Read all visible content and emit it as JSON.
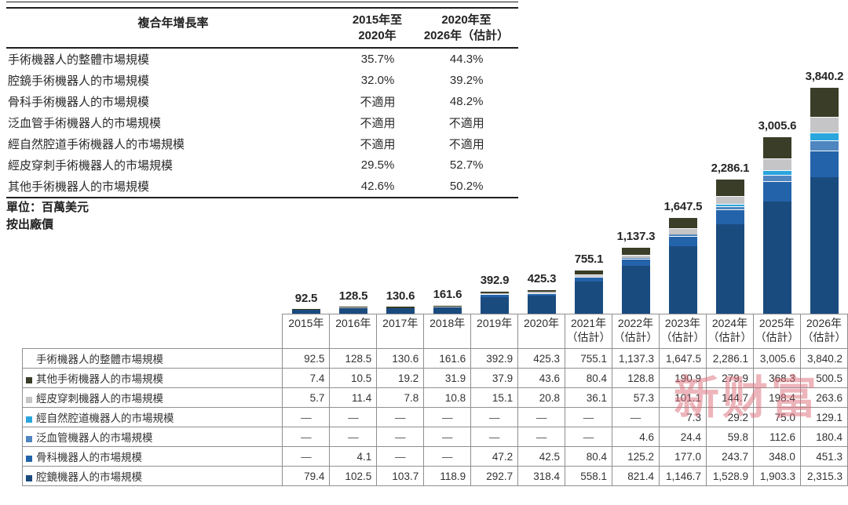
{
  "cagr_table": {
    "title": "複合年增長率",
    "col1_header_lines": [
      "2015年至",
      "2020年"
    ],
    "col2_header_lines": [
      "2020年至",
      "2026年（估計）"
    ],
    "rows": [
      {
        "label": "手術機器人的整體市場規模",
        "v1": "35.7%",
        "v2": "44.3%"
      },
      {
        "label": "腔鏡手術機器人的市場規模",
        "v1": "32.0%",
        "v2": "39.2%"
      },
      {
        "label": "骨科手術機器人的市場規模",
        "v1": "不適用",
        "v2": "48.2%"
      },
      {
        "label": "泛血管手術機器人的市場規模",
        "v1": "不適用",
        "v2": "不適用"
      },
      {
        "label": "經自然腔道手術機器人的市場規模",
        "v1": "不適用",
        "v2": "不適用"
      },
      {
        "label": "經皮穿刺手術機器人的市場規模",
        "v1": "29.5%",
        "v2": "52.7%"
      },
      {
        "label": "其他手術機器人的市場規模",
        "v1": "42.6%",
        "v2": "50.2%"
      }
    ]
  },
  "unit_note": {
    "line1": "單位：百萬美元",
    "line2": "按出廠價"
  },
  "chart_data": {
    "type": "bar",
    "stacked": true,
    "unit": "百萬美元",
    "categories": [
      "2015年",
      "2016年",
      "2017年",
      "2018年",
      "2019年",
      "2020年",
      "2021年",
      "2022年",
      "2023年",
      "2024年",
      "2025年",
      "2026年"
    ],
    "estimate_from_index": 6,
    "estimate_suffix": "（估計）",
    "totals": [
      92.5,
      128.5,
      130.6,
      161.6,
      392.9,
      425.3,
      755.1,
      1137.3,
      1647.5,
      2286.1,
      3005.6,
      3840.2
    ],
    "totals_display": [
      "92.5",
      "128.5",
      "130.6",
      "161.6",
      "392.9",
      "425.3",
      "755.1",
      "1,137.3",
      "1,647.5",
      "2,286.1",
      "3,005.6",
      "3,840.2"
    ],
    "series": [
      {
        "name": "腔鏡機器人的市場規模",
        "color": "#1a4b7f",
        "values": [
          79.4,
          102.5,
          103.7,
          118.9,
          292.7,
          318.4,
          558.1,
          821.4,
          1146.7,
          1528.9,
          1903.3,
          2315.3
        ]
      },
      {
        "name": "骨科機器人的市場規模",
        "color": "#2363a9",
        "values": [
          0,
          4.1,
          0,
          0,
          47.2,
          42.5,
          80.4,
          125.2,
          177.0,
          243.7,
          348.0,
          451.3
        ]
      },
      {
        "name": "泛血管機器人的市場規模",
        "color": "#4f86c0",
        "values": [
          0,
          0,
          0,
          0,
          0,
          0,
          0,
          4.6,
          24.4,
          59.8,
          112.6,
          180.4
        ]
      },
      {
        "name": "經自然腔道機器人的市場規模",
        "color": "#2aa6dd",
        "values": [
          0,
          0,
          0,
          0,
          0,
          0,
          0,
          0,
          7.3,
          29.2,
          75.0,
          129.1
        ]
      },
      {
        "name": "經皮穿刺機器人的市場規模",
        "color": "#c5c4c6",
        "values": [
          5.7,
          11.4,
          7.8,
          10.8,
          15.1,
          20.8,
          36.1,
          57.3,
          101.1,
          144.7,
          198.4,
          263.6
        ]
      },
      {
        "name": "其他手術機器人的市場規模",
        "color": "#3a3d27",
        "values": [
          7.4,
          10.5,
          19.2,
          31.9,
          37.9,
          43.6,
          80.4,
          128.8,
          190.9,
          279.9,
          368.3,
          500.5
        ]
      }
    ],
    "ylim": [
      0,
      3840.2
    ],
    "legend_position": "table-left",
    "grid": false
  },
  "bottom_table": {
    "rows": [
      {
        "marker": null,
        "label": "手術機器人的整體市場規模",
        "cells": [
          "92.5",
          "128.5",
          "130.6",
          "161.6",
          "392.9",
          "425.3",
          "755.1",
          "1,137.3",
          "1,647.5",
          "2,286.1",
          "3,005.6",
          "3,840.2"
        ]
      },
      {
        "marker": "#3a3d27",
        "label": "其他手術機器人的市場規模",
        "cells": [
          "7.4",
          "10.5",
          "19.2",
          "31.9",
          "37.9",
          "43.6",
          "80.4",
          "128.8",
          "190.9",
          "279.9",
          "368.3",
          "500.5"
        ]
      },
      {
        "marker": "#c5c4c6",
        "label": "經皮穿刺機器人的市場規模",
        "cells": [
          "5.7",
          "11.4",
          "7.8",
          "10.8",
          "15.1",
          "20.8",
          "36.1",
          "57.3",
          "101.1",
          "144.7",
          "198.4",
          "263.6"
        ]
      },
      {
        "marker": "#2aa6dd",
        "label": "經自然腔道機器人的市場規模",
        "cells": [
          "—",
          "—",
          "—",
          "—",
          "—",
          "—",
          "—",
          "—",
          "7.3",
          "29.2",
          "75.0",
          "129.1"
        ]
      },
      {
        "marker": "#4f86c0",
        "label": "泛血管機器人的市場規模",
        "cells": [
          "—",
          "—",
          "—",
          "—",
          "—",
          "—",
          "—",
          "4.6",
          "24.4",
          "59.8",
          "112.6",
          "180.4"
        ]
      },
      {
        "marker": "#2363a9",
        "label": "骨科機器人的市場規模",
        "cells": [
          "—",
          "4.1",
          "—",
          "—",
          "47.2",
          "42.5",
          "80.4",
          "125.2",
          "177.0",
          "243.7",
          "348.0",
          "451.3"
        ]
      },
      {
        "marker": "#1a4b7f",
        "label": "腔鏡機器人的市場規模",
        "cells": [
          "79.4",
          "102.5",
          "103.7",
          "118.9",
          "292.7",
          "318.4",
          "558.1",
          "821.4",
          "1,146.7",
          "1,528.9",
          "1,903.3",
          "2,315.3"
        ]
      }
    ]
  },
  "watermark": {
    "text": "新财富",
    "color": "#db6c78"
  }
}
